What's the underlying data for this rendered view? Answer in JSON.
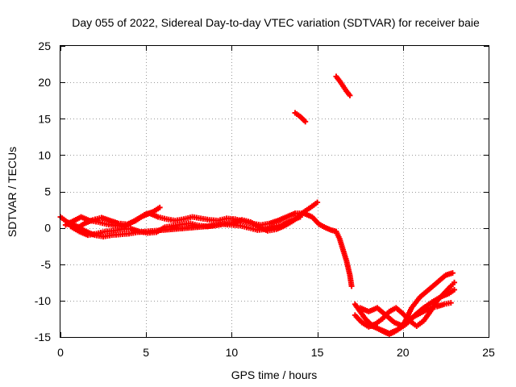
{
  "chart_data": {
    "type": "scatter",
    "title": "Day 055 of 2022, Sidereal Day-to-day VTEC variation (SDTVAR) for receiver baie",
    "xlabel": "GPS time / hours",
    "ylabel": "SDTVAR / TECUs",
    "xlim": [
      0,
      25
    ],
    "ylim": [
      -15,
      25
    ],
    "xticks": [
      0,
      5,
      10,
      15,
      20,
      25
    ],
    "yticks": [
      -15,
      -10,
      -5,
      0,
      5,
      10,
      15,
      20,
      25
    ],
    "grid": true,
    "marker_color": "#ff0000",
    "series": [
      {
        "name": "track-1",
        "points": [
          [
            0,
            1.5
          ],
          [
            0.4,
            0.8
          ],
          [
            0.9,
            0.3
          ],
          [
            1.5,
            -0.5
          ],
          [
            2.0,
            -1.0
          ],
          [
            2.5,
            -1.2
          ],
          [
            3.0,
            -1.0
          ],
          [
            3.5,
            -0.9
          ],
          [
            4.0,
            -0.8
          ],
          [
            4.5,
            -0.6
          ],
          [
            5.0,
            -0.5
          ],
          [
            5.5,
            -0.4
          ],
          [
            6.0,
            -0.3
          ],
          [
            7.0,
            -0.1
          ],
          [
            8.0,
            0.1
          ],
          [
            9.0,
            0.3
          ],
          [
            9.5,
            0.5
          ],
          [
            10.0,
            0.4
          ],
          [
            10.5,
            0.3
          ],
          [
            11.0,
            0.0
          ],
          [
            11.5,
            -0.3
          ],
          [
            12.0,
            -0.2
          ],
          [
            12.5,
            0.2
          ],
          [
            13.0,
            0.5
          ],
          [
            13.5,
            1.0
          ],
          [
            14.0,
            1.5
          ]
        ]
      },
      {
        "name": "track-2",
        "points": [
          [
            0.3,
            0.4
          ],
          [
            0.8,
            1.0
          ],
          [
            1.2,
            1.5
          ],
          [
            1.7,
            1.0
          ],
          [
            2.2,
            0.8
          ],
          [
            2.7,
            0.5
          ],
          [
            3.2,
            0.3
          ],
          [
            3.7,
            0.2
          ],
          [
            4.2,
            0.8
          ],
          [
            4.7,
            1.5
          ],
          [
            5.2,
            2.0
          ],
          [
            5.7,
            1.5
          ],
          [
            6.2,
            1.2
          ],
          [
            6.7,
            1.0
          ],
          [
            7.2,
            1.2
          ],
          [
            7.7,
            1.5
          ],
          [
            8.2,
            1.3
          ],
          [
            8.7,
            1.1
          ],
          [
            9.2,
            1.0
          ],
          [
            9.7,
            1.3
          ],
          [
            10.2,
            1.2
          ],
          [
            10.7,
            0.9
          ],
          [
            11.2,
            0.6
          ],
          [
            11.7,
            0.4
          ],
          [
            12.2,
            0.6
          ],
          [
            12.7,
            1.0
          ],
          [
            13.2,
            1.5
          ],
          [
            13.7,
            2.0
          ],
          [
            14.2,
            2.0
          ],
          [
            14.7,
            1.5
          ],
          [
            15.1,
            0.5
          ],
          [
            15.5,
            0.0
          ],
          [
            15.8,
            -0.3
          ],
          [
            16.1,
            -0.5
          ],
          [
            16.3,
            -1.5
          ],
          [
            16.5,
            -3.0
          ],
          [
            16.7,
            -4.5
          ],
          [
            16.9,
            -6.5
          ],
          [
            17.0,
            -8.0
          ]
        ]
      },
      {
        "name": "track-3",
        "points": [
          [
            0.6,
            0.2
          ],
          [
            1.1,
            -0.5
          ],
          [
            1.6,
            -1.0
          ],
          [
            2.1,
            -0.8
          ],
          [
            2.6,
            -0.5
          ],
          [
            3.1,
            -0.4
          ],
          [
            3.6,
            -0.2
          ],
          [
            4.1,
            -0.1
          ],
          [
            4.6,
            -0.5
          ],
          [
            5.1,
            -0.7
          ],
          [
            5.6,
            -0.6
          ],
          [
            6.1,
            0.1
          ],
          [
            6.6,
            0.3
          ],
          [
            7.1,
            0.5
          ],
          [
            7.6,
            0.6
          ],
          [
            8.1,
            0.3
          ],
          [
            8.6,
            0.2
          ],
          [
            9.1,
            0.4
          ],
          [
            9.6,
            0.6
          ],
          [
            10.1,
            0.7
          ],
          [
            10.6,
            1.1
          ],
          [
            11.1,
            0.8
          ],
          [
            11.6,
            0.1
          ],
          [
            12.1,
            -0.4
          ],
          [
            12.6,
            -0.2
          ],
          [
            13.1,
            0.3
          ],
          [
            13.6,
            1.0
          ],
          [
            14.1,
            2.0
          ],
          [
            14.6,
            2.8
          ],
          [
            15.0,
            3.5
          ]
        ]
      },
      {
        "name": "track-4",
        "points": [
          [
            1.0,
            0.0
          ],
          [
            1.4,
            0.6
          ],
          [
            1.9,
            1.1
          ],
          [
            2.4,
            1.4
          ],
          [
            2.9,
            1.0
          ],
          [
            3.4,
            0.6
          ],
          [
            3.9,
            0.5
          ],
          [
            4.4,
            1.0
          ],
          [
            4.9,
            1.8
          ],
          [
            5.4,
            2.2
          ],
          [
            5.8,
            2.8
          ]
        ]
      },
      {
        "name": "track-5",
        "points": [
          [
            13.7,
            15.8
          ],
          [
            14.0,
            15.3
          ],
          [
            14.3,
            14.6
          ],
          [
            16.1,
            20.8
          ],
          [
            16.3,
            20.2
          ],
          [
            16.5,
            19.5
          ],
          [
            16.7,
            18.8
          ],
          [
            16.9,
            18.2
          ]
        ]
      },
      {
        "name": "track-6",
        "points": [
          [
            17.2,
            -10.5
          ],
          [
            17.5,
            -11.5
          ],
          [
            17.8,
            -12.5
          ],
          [
            18.1,
            -13.2
          ],
          [
            18.5,
            -13.8
          ],
          [
            18.9,
            -14.3
          ],
          [
            19.2,
            -14.6
          ],
          [
            19.5,
            -14.3
          ],
          [
            19.8,
            -13.8
          ],
          [
            20.1,
            -13.0
          ],
          [
            20.4,
            -12.5
          ],
          [
            20.8,
            -12.0
          ],
          [
            21.2,
            -11.5
          ],
          [
            21.6,
            -11.0
          ],
          [
            22.0,
            -10.8
          ],
          [
            22.4,
            -10.5
          ],
          [
            22.8,
            -10.3
          ]
        ]
      },
      {
        "name": "track-7",
        "points": [
          [
            17.2,
            -12.0
          ],
          [
            17.6,
            -13.0
          ],
          [
            18.0,
            -13.6
          ],
          [
            18.4,
            -13.2
          ],
          [
            18.8,
            -12.5
          ],
          [
            19.2,
            -11.5
          ],
          [
            19.6,
            -11.0
          ],
          [
            20.0,
            -11.8
          ],
          [
            20.4,
            -12.8
          ],
          [
            20.8,
            -13.5
          ],
          [
            21.2,
            -12.8
          ],
          [
            21.6,
            -11.5
          ],
          [
            22.0,
            -10.0
          ],
          [
            22.4,
            -9.0
          ],
          [
            22.8,
            -8.0
          ],
          [
            23.0,
            -7.5
          ]
        ]
      },
      {
        "name": "track-8",
        "points": [
          [
            17.5,
            -11.0
          ],
          [
            18.0,
            -11.5
          ],
          [
            18.5,
            -11.0
          ],
          [
            19.0,
            -12.0
          ],
          [
            19.5,
            -13.0
          ],
          [
            20.0,
            -13.5
          ],
          [
            20.5,
            -11.0
          ],
          [
            21.0,
            -9.5
          ],
          [
            21.5,
            -8.5
          ],
          [
            22.0,
            -7.5
          ],
          [
            22.5,
            -6.5
          ],
          [
            22.9,
            -6.2
          ]
        ]
      },
      {
        "name": "track-9",
        "points": [
          [
            18.2,
            -13.5
          ],
          [
            18.7,
            -14.0
          ],
          [
            19.2,
            -14.5
          ],
          [
            19.7,
            -14.0
          ],
          [
            20.2,
            -13.2
          ],
          [
            20.7,
            -12.0
          ],
          [
            21.2,
            -11.0
          ],
          [
            21.7,
            -10.2
          ],
          [
            22.2,
            -9.5
          ],
          [
            22.7,
            -9.0
          ],
          [
            23.0,
            -8.5
          ]
        ]
      }
    ]
  }
}
